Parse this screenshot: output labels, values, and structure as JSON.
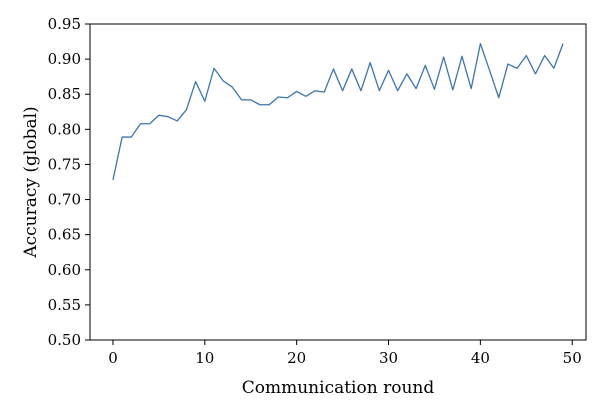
{
  "chart_data": {
    "type": "line",
    "title": "",
    "xlabel": "Communication round",
    "ylabel": "Accuracy (global)",
    "xlim": [
      -2.5,
      51.5
    ],
    "ylim": [
      0.5,
      0.95
    ],
    "grid": false,
    "legend": "none",
    "x_ticks": [
      0,
      10,
      20,
      30,
      40,
      50
    ],
    "y_ticks": [
      0.5,
      0.55,
      0.6,
      0.65,
      0.7,
      0.75,
      0.8,
      0.85,
      0.9,
      0.95
    ],
    "y_tick_labels": [
      "0.50",
      "0.55",
      "0.60",
      "0.65",
      "0.70",
      "0.75",
      "0.80",
      "0.85",
      "0.90",
      "0.95"
    ],
    "line_color": "#3a75b0",
    "series": [
      {
        "x": [
          0,
          1,
          2,
          3,
          4,
          5,
          6,
          7,
          8,
          9,
          10,
          11,
          12,
          13,
          14,
          15,
          16,
          17,
          18,
          19,
          20,
          21,
          22,
          23,
          24,
          25,
          26,
          27,
          28,
          29,
          30,
          31,
          32,
          33,
          34,
          35,
          36,
          37,
          38,
          39,
          40,
          41,
          42,
          43,
          44,
          45,
          46,
          47,
          48,
          49
        ],
        "values": [
          0.728,
          0.789,
          0.789,
          0.808,
          0.808,
          0.82,
          0.818,
          0.812,
          0.828,
          0.868,
          0.84,
          0.887,
          0.869,
          0.86,
          0.842,
          0.842,
          0.835,
          0.835,
          0.846,
          0.845,
          0.854,
          0.847,
          0.855,
          0.853,
          0.886,
          0.855,
          0.886,
          0.855,
          0.895,
          0.855,
          0.884,
          0.855,
          0.879,
          0.858,
          0.891,
          0.857,
          0.903,
          0.856,
          0.904,
          0.858,
          0.922,
          0.884,
          0.845,
          0.893,
          0.887,
          0.905,
          0.879,
          0.905,
          0.887,
          0.922
        ]
      }
    ]
  }
}
